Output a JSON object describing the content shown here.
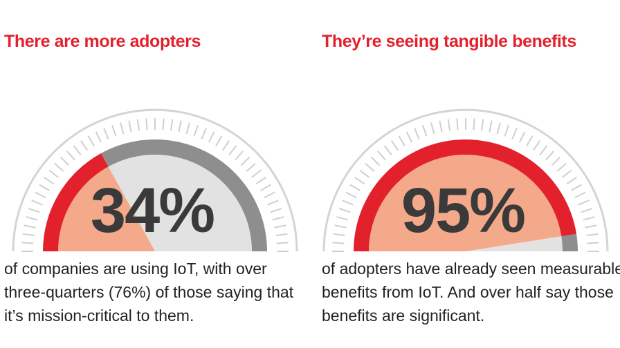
{
  "colors": {
    "red": "#e3212d",
    "salmon": "#f4a98b",
    "gray": "#8e8e8e",
    "light_gray": "#e2e2e2",
    "tick": "#cfcfcf",
    "text": "#222222",
    "value_text": "#3a3a3a"
  },
  "chart_data": [
    {
      "type": "gauge",
      "title": "There are more adopters",
      "value": 34,
      "unit": "%",
      "value_label": "34%",
      "range": [
        0,
        100
      ],
      "caption": [
        "of companies are using IoT, with over",
        "three-quarters (76%) of those saying that",
        "it’s mission-critical to them."
      ]
    },
    {
      "type": "gauge",
      "title": "They’re seeing tangible benefits",
      "value": 95,
      "unit": "%",
      "value_label": "95%",
      "range": [
        0,
        100
      ],
      "caption": [
        "of adopters have already seen measurable",
        "benefits from IoT. And over half say those",
        "benefits are significant."
      ]
    }
  ]
}
